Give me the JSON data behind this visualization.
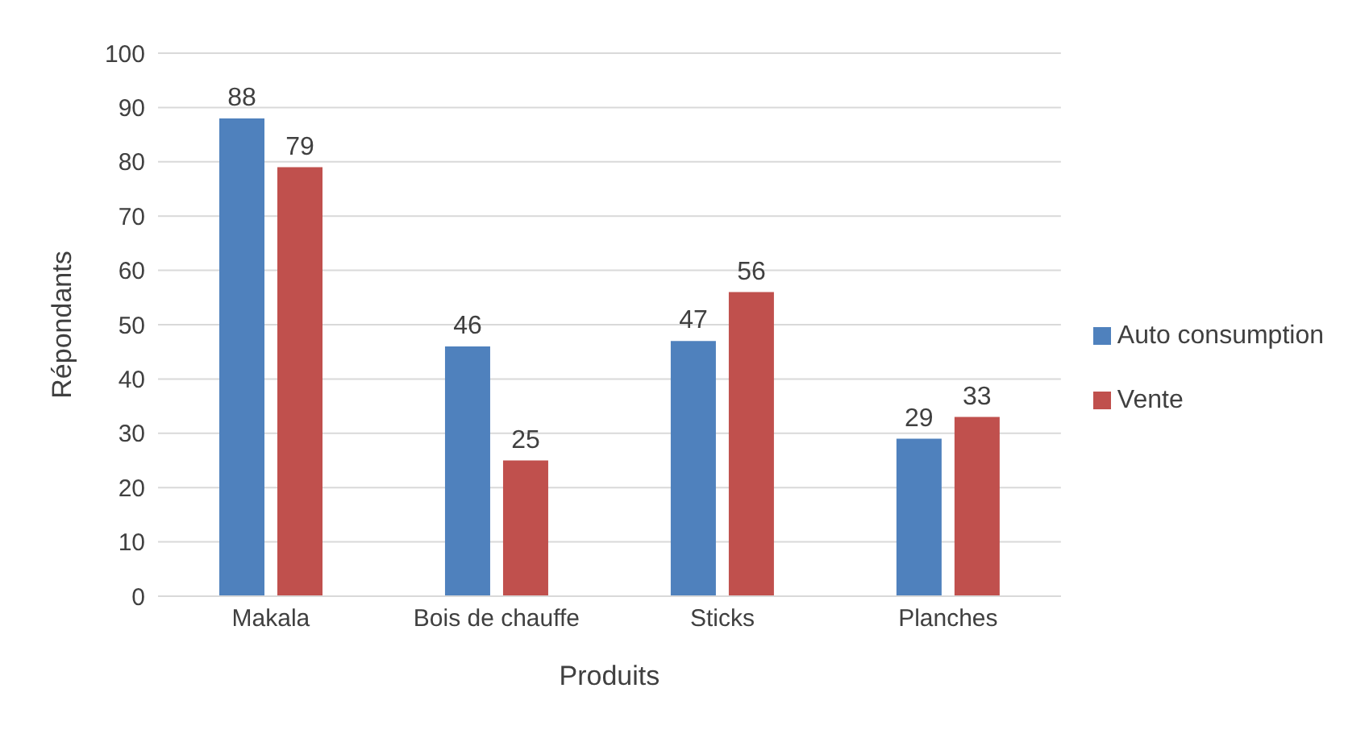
{
  "chart_data": {
    "type": "bar",
    "xlabel": "Produits",
    "ylabel": "Répondants",
    "categories": [
      "Makala",
      "Bois de chauffe",
      "Sticks",
      "Planches"
    ],
    "series": [
      {
        "name": "Auto consumption",
        "color": "#4f81bd",
        "values": [
          88,
          46,
          47,
          29
        ]
      },
      {
        "name": "Vente",
        "color": "#c0504d",
        "values": [
          79,
          25,
          56,
          33
        ]
      }
    ],
    "ylim": [
      0,
      100
    ],
    "yticks": [
      0,
      10,
      20,
      30,
      40,
      50,
      60,
      70,
      80,
      90,
      100
    ],
    "grid": "y",
    "legend": "right",
    "data_labels": true
  }
}
